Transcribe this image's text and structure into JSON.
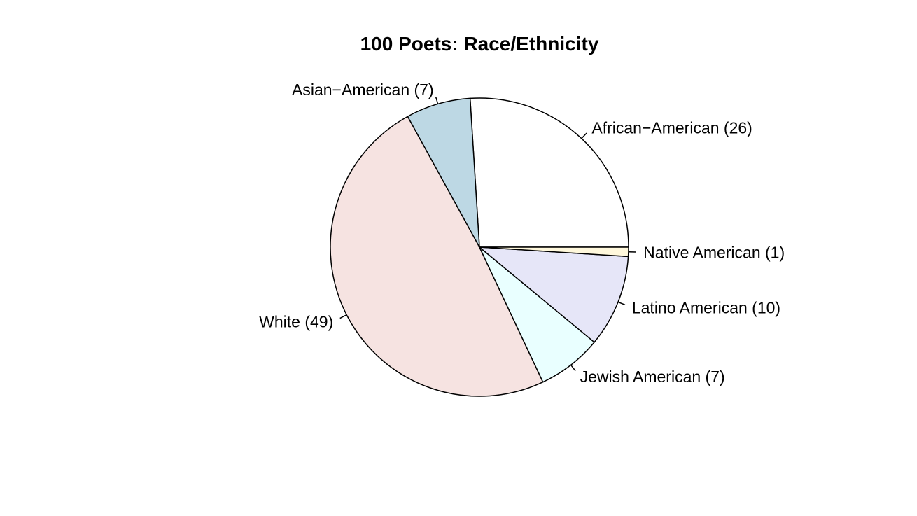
{
  "chart_data": {
    "type": "pie",
    "title": "100 Poets: Race/Ethnicity",
    "start_angle_deg": 0,
    "direction": "counterclockwise",
    "slices": [
      {
        "label": "African−American (26)",
        "value": 26,
        "color": "#ffffff"
      },
      {
        "label": "Asian−American (7)",
        "value": 7,
        "color": "#bdd8e4"
      },
      {
        "label": "White (49)",
        "value": 49,
        "color": "#f6e3e1"
      },
      {
        "label": "Jewish American (7)",
        "value": 7,
        "color": "#e9ffff"
      },
      {
        "label": "Latino American (10)",
        "value": 10,
        "color": "#e6e6f8"
      },
      {
        "label": "Native American (1)",
        "value": 1,
        "color": "#fff8dc"
      }
    ]
  }
}
